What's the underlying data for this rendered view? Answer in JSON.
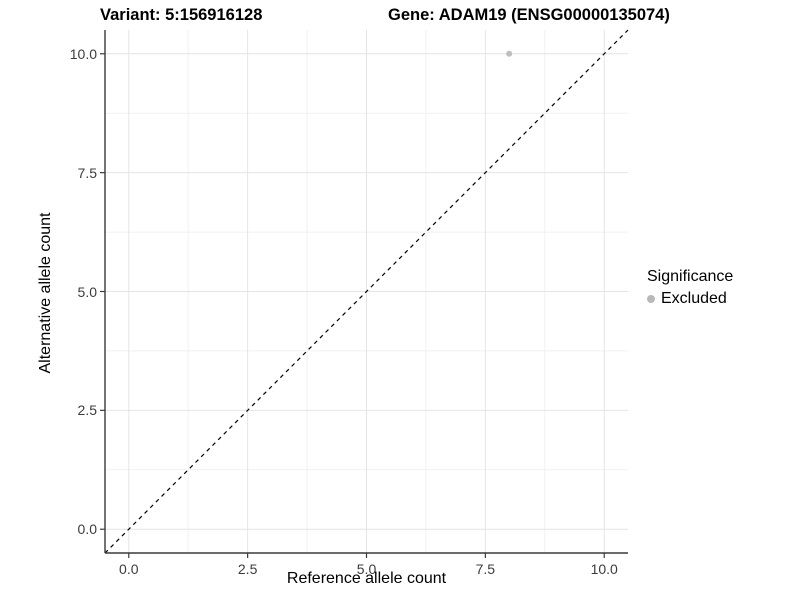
{
  "chart_data": {
    "type": "scatter",
    "title_left": "Variant: 5:156916128",
    "title_right": "Gene: ADAM19 (ENSG00000135074)",
    "xlabel": "Reference allele count",
    "ylabel": "Alternative allele count",
    "xlim": [
      -0.5,
      10.5
    ],
    "ylim": [
      -0.5,
      10.5
    ],
    "x_ticks": [
      0,
      2.5,
      5,
      7.5,
      10
    ],
    "y_ticks": [
      0,
      2.5,
      5,
      7.5,
      10
    ],
    "x_tick_labels": [
      "0.0",
      "2.5",
      "5.0",
      "7.5",
      "10.0"
    ],
    "y_tick_labels": [
      "0.0",
      "2.5",
      "5.0",
      "7.5",
      "10.0"
    ],
    "x_minor_ticks": [
      1.25,
      3.75,
      6.25,
      8.75
    ],
    "y_minor_ticks": [
      1.25,
      3.75,
      6.25,
      8.75
    ],
    "grid": true,
    "series": [
      {
        "name": "Excluded",
        "color": "#bebebe",
        "points": [
          {
            "x": 8,
            "y": 10
          }
        ]
      }
    ],
    "reference_line": {
      "type": "identity",
      "style": "dashed",
      "color": "#000000"
    },
    "legend": {
      "title": "Significance",
      "position": "right",
      "items": [
        {
          "label": "Excluded",
          "color": "#b8b8b8"
        }
      ]
    },
    "colors": {
      "grid_major": "#e4e4e4",
      "grid_minor": "#f1f1f1",
      "axis": "#3a3a3a",
      "tick_label": "#3c3c3c",
      "background": "#ffffff"
    }
  }
}
